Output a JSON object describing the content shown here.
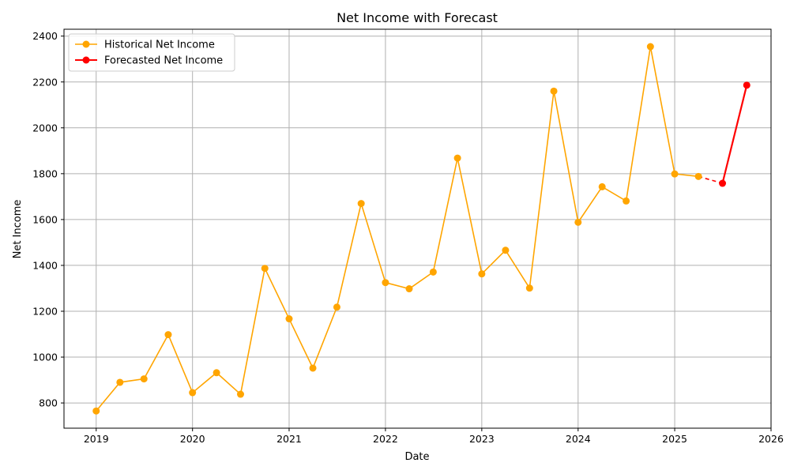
{
  "chart_data": {
    "type": "line",
    "title": "Net Income with Forecast",
    "xlabel": "Date",
    "ylabel": "Net Income",
    "xlim": [
      "2018-09-01",
      "2026-01-01"
    ],
    "ylim": [
      690,
      2430
    ],
    "x_ticks": [
      "2019",
      "2020",
      "2021",
      "2022",
      "2023",
      "2024",
      "2025",
      "2026"
    ],
    "y_ticks": [
      800,
      1000,
      1200,
      1400,
      1600,
      1800,
      2000,
      2200,
      2400
    ],
    "grid": true,
    "legend_position": "upper-left",
    "colors": {
      "historical": "#FFA500",
      "forecast": "#FF0000"
    },
    "series": [
      {
        "name": "Historical Net Income",
        "style": "solid",
        "marker": "circle",
        "points": [
          {
            "x": "2019-01-01",
            "y": 765
          },
          {
            "x": "2019-04-01",
            "y": 890
          },
          {
            "x": "2019-07-01",
            "y": 905
          },
          {
            "x": "2019-10-01",
            "y": 1098
          },
          {
            "x": "2020-01-01",
            "y": 845
          },
          {
            "x": "2020-04-01",
            "y": 932
          },
          {
            "x": "2020-07-01",
            "y": 838
          },
          {
            "x": "2020-10-01",
            "y": 1387
          },
          {
            "x": "2021-01-01",
            "y": 1167
          },
          {
            "x": "2021-04-01",
            "y": 952
          },
          {
            "x": "2021-07-01",
            "y": 1218
          },
          {
            "x": "2021-10-01",
            "y": 1670
          },
          {
            "x": "2022-01-01",
            "y": 1325
          },
          {
            "x": "2022-04-01",
            "y": 1298
          },
          {
            "x": "2022-07-01",
            "y": 1371
          },
          {
            "x": "2022-10-01",
            "y": 1868
          },
          {
            "x": "2023-01-01",
            "y": 1363
          },
          {
            "x": "2023-04-01",
            "y": 1466
          },
          {
            "x": "2023-07-01",
            "y": 1301
          },
          {
            "x": "2023-10-01",
            "y": 2160
          },
          {
            "x": "2024-01-01",
            "y": 1588
          },
          {
            "x": "2024-04-01",
            "y": 1743
          },
          {
            "x": "2024-07-01",
            "y": 1681
          },
          {
            "x": "2024-10-01",
            "y": 2354
          },
          {
            "x": "2025-01-01",
            "y": 1799
          },
          {
            "x": "2025-04-01",
            "y": 1788
          }
        ]
      },
      {
        "name": "Forecasted Net Income",
        "style": "solid",
        "marker": "circle",
        "points": [
          {
            "x": "2025-07-01",
            "y": 1758
          },
          {
            "x": "2025-10-01",
            "y": 2186
          }
        ]
      }
    ],
    "connector": {
      "style": "dashed",
      "points": [
        {
          "x": "2025-04-01",
          "y": 1788
        },
        {
          "x": "2025-07-01",
          "y": 1758
        }
      ]
    }
  }
}
